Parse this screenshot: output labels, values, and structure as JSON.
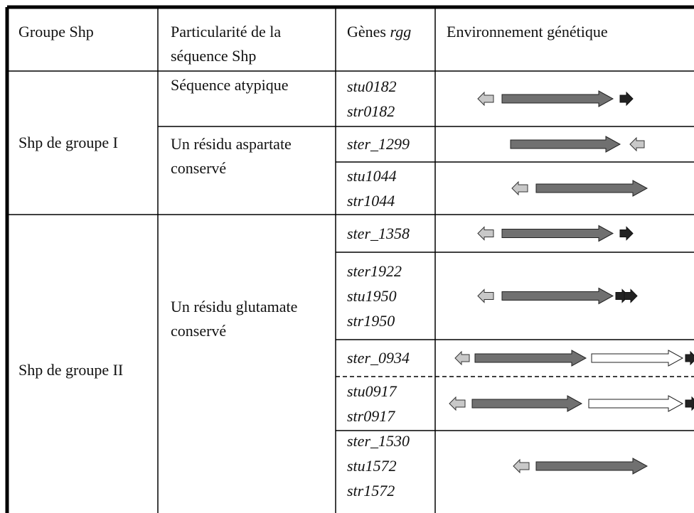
{
  "header": {
    "group": "Groupe Shp",
    "feature": [
      "Particularité de la",
      "séquence Shp"
    ],
    "genes": "Gènes",
    "genes_italic": "rgg",
    "environment": "Environnement génétique"
  },
  "groups": [
    {
      "label": "Shp de groupe I",
      "features": [
        {
          "lines": [
            "Séquence atypique"
          ],
          "genes": [
            [
              "stu0182",
              "str0182"
            ]
          ]
        },
        {
          "lines": [
            "Un résidu aspartate",
            "conservé"
          ],
          "genes": [
            [
              "ster_1299"
            ],
            [
              "stu1044",
              "str1044"
            ]
          ]
        }
      ]
    },
    {
      "label": "Shp de groupe II",
      "features": [
        {
          "lines": [
            "Un résidu glutamate",
            "conservé"
          ],
          "genes": [
            [
              "ster_1358"
            ],
            [
              "ster1922",
              "stu1950",
              "str1950"
            ],
            [
              "ster_0934"
            ],
            [
              "stu0917",
              "str0917"
            ],
            [
              "ster_1530",
              "stu1572",
              "str1572"
            ]
          ]
        }
      ]
    }
  ]
}
